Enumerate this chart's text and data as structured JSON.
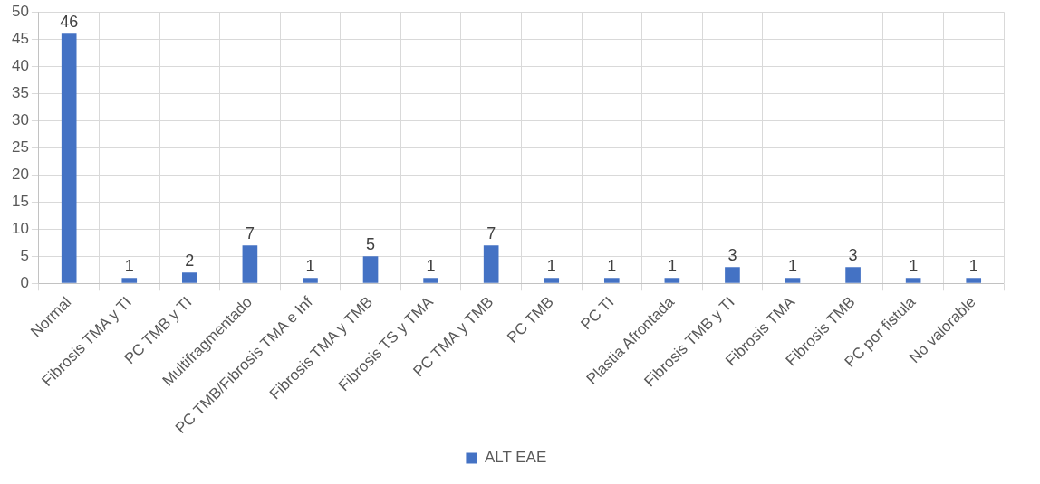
{
  "chart_data": {
    "type": "bar",
    "categories": [
      "Normal",
      "Fibrosis TMA y TI",
      "PC TMB y TI",
      "Multifragmentado",
      "PC TMB/Fibrosis TMA e Inf",
      "Fibrosis TMA y TMB",
      "Fibrosis TS y TMA",
      "PC TMA y TMB",
      "PC TMB",
      "PC TI",
      "Plastia Afrontada",
      "Fibrosis TMB y TI",
      "Fibrosis TMA",
      "Fibrosis TMB",
      "PC por fistula",
      "No valorable"
    ],
    "series": [
      {
        "name": "ALT EAE",
        "color": "#4472c4",
        "values": [
          46,
          1,
          2,
          7,
          1,
          5,
          1,
          7,
          1,
          1,
          1,
          3,
          1,
          3,
          1,
          1
        ]
      }
    ],
    "ylim": [
      0,
      50
    ],
    "yticks": [
      0,
      5,
      10,
      15,
      20,
      25,
      30,
      35,
      40,
      45,
      50
    ],
    "grid": true,
    "legend": "bottom",
    "data_labels": true
  }
}
